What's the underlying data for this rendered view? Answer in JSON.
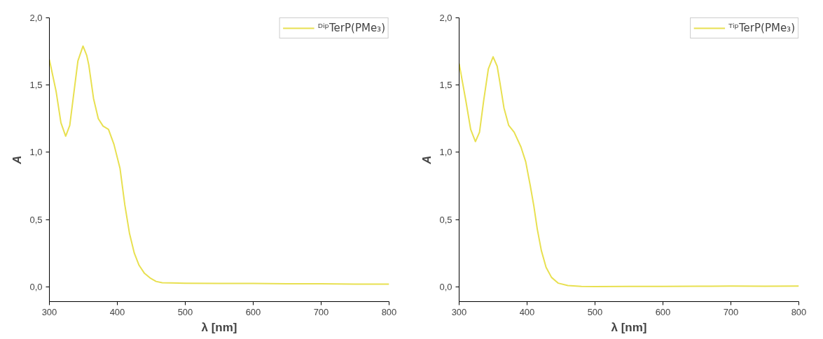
{
  "chart_data": [
    {
      "type": "line",
      "xlabel": "λ [nm]",
      "ylabel": "A",
      "xlim": [
        300,
        800
      ],
      "ylim": [
        -0.11,
        2.0
      ],
      "xticks": [
        300,
        400,
        500,
        600,
        700,
        800
      ],
      "yticks": [
        {
          "value": 0,
          "label": "0,0"
        },
        {
          "value": 0.5,
          "label": "0,5"
        },
        {
          "value": 1.0,
          "label": "1,0"
        },
        {
          "value": 1.5,
          "label": "1,5"
        },
        {
          "value": 2.0,
          "label": "2,0"
        }
      ],
      "legend": "top right",
      "grid": false,
      "series": [
        {
          "name": "ᴰⁱᵖTerP(PMe₃)",
          "color": "#e8e050",
          "x": [
            300,
            305,
            310,
            317,
            324,
            330,
            335,
            342,
            349.5,
            355,
            358,
            365,
            372,
            379,
            387,
            395,
            404,
            411,
            418,
            425,
            432,
            440,
            449,
            457,
            466,
            500,
            550,
            600,
            650,
            700,
            750,
            800
          ],
          "values": [
            1.69,
            1.57,
            1.45,
            1.22,
            1.12,
            1.2,
            1.4,
            1.68,
            1.79,
            1.72,
            1.65,
            1.4,
            1.25,
            1.195,
            1.17,
            1.06,
            0.88,
            0.61,
            0.395,
            0.25,
            0.16,
            0.1,
            0.063,
            0.04,
            0.03,
            0.027,
            0.025,
            0.025,
            0.023,
            0.022,
            0.02,
            0.02
          ]
        }
      ]
    },
    {
      "type": "line",
      "xlabel": "λ [nm]",
      "ylabel": "A",
      "xlim": [
        300,
        800
      ],
      "ylim": [
        -0.11,
        2.0
      ],
      "xticks": [
        300,
        400,
        500,
        600,
        700,
        800
      ],
      "yticks": [
        {
          "value": 0,
          "label": "0,0"
        },
        {
          "value": 0.5,
          "label": "0,5"
        },
        {
          "value": 1.0,
          "label": "1,0"
        },
        {
          "value": 1.5,
          "label": "1,5"
        },
        {
          "value": 2.0,
          "label": "2,0"
        }
      ],
      "legend": "top right",
      "grid": false,
      "series": [
        {
          "name": "ᵀⁱᵖTerP(PMe₃)",
          "color": "#e8e050",
          "x": [
            300,
            305,
            310,
            317,
            324,
            330,
            336,
            343,
            350,
            356,
            360,
            366,
            373,
            381,
            391,
            398,
            404.6,
            410,
            415,
            421,
            428,
            436,
            446,
            460,
            480,
            500,
            550,
            600,
            650,
            700,
            750,
            800
          ],
          "values": [
            1.66,
            1.52,
            1.38,
            1.17,
            1.08,
            1.15,
            1.38,
            1.62,
            1.71,
            1.64,
            1.52,
            1.33,
            1.2,
            1.15,
            1.04,
            0.93,
            0.755,
            0.6,
            0.43,
            0.27,
            0.145,
            0.07,
            0.027,
            0.01,
            0.003,
            0.002,
            0.003,
            0.003,
            0.004,
            0.005,
            0.004,
            0.005
          ]
        }
      ]
    }
  ]
}
